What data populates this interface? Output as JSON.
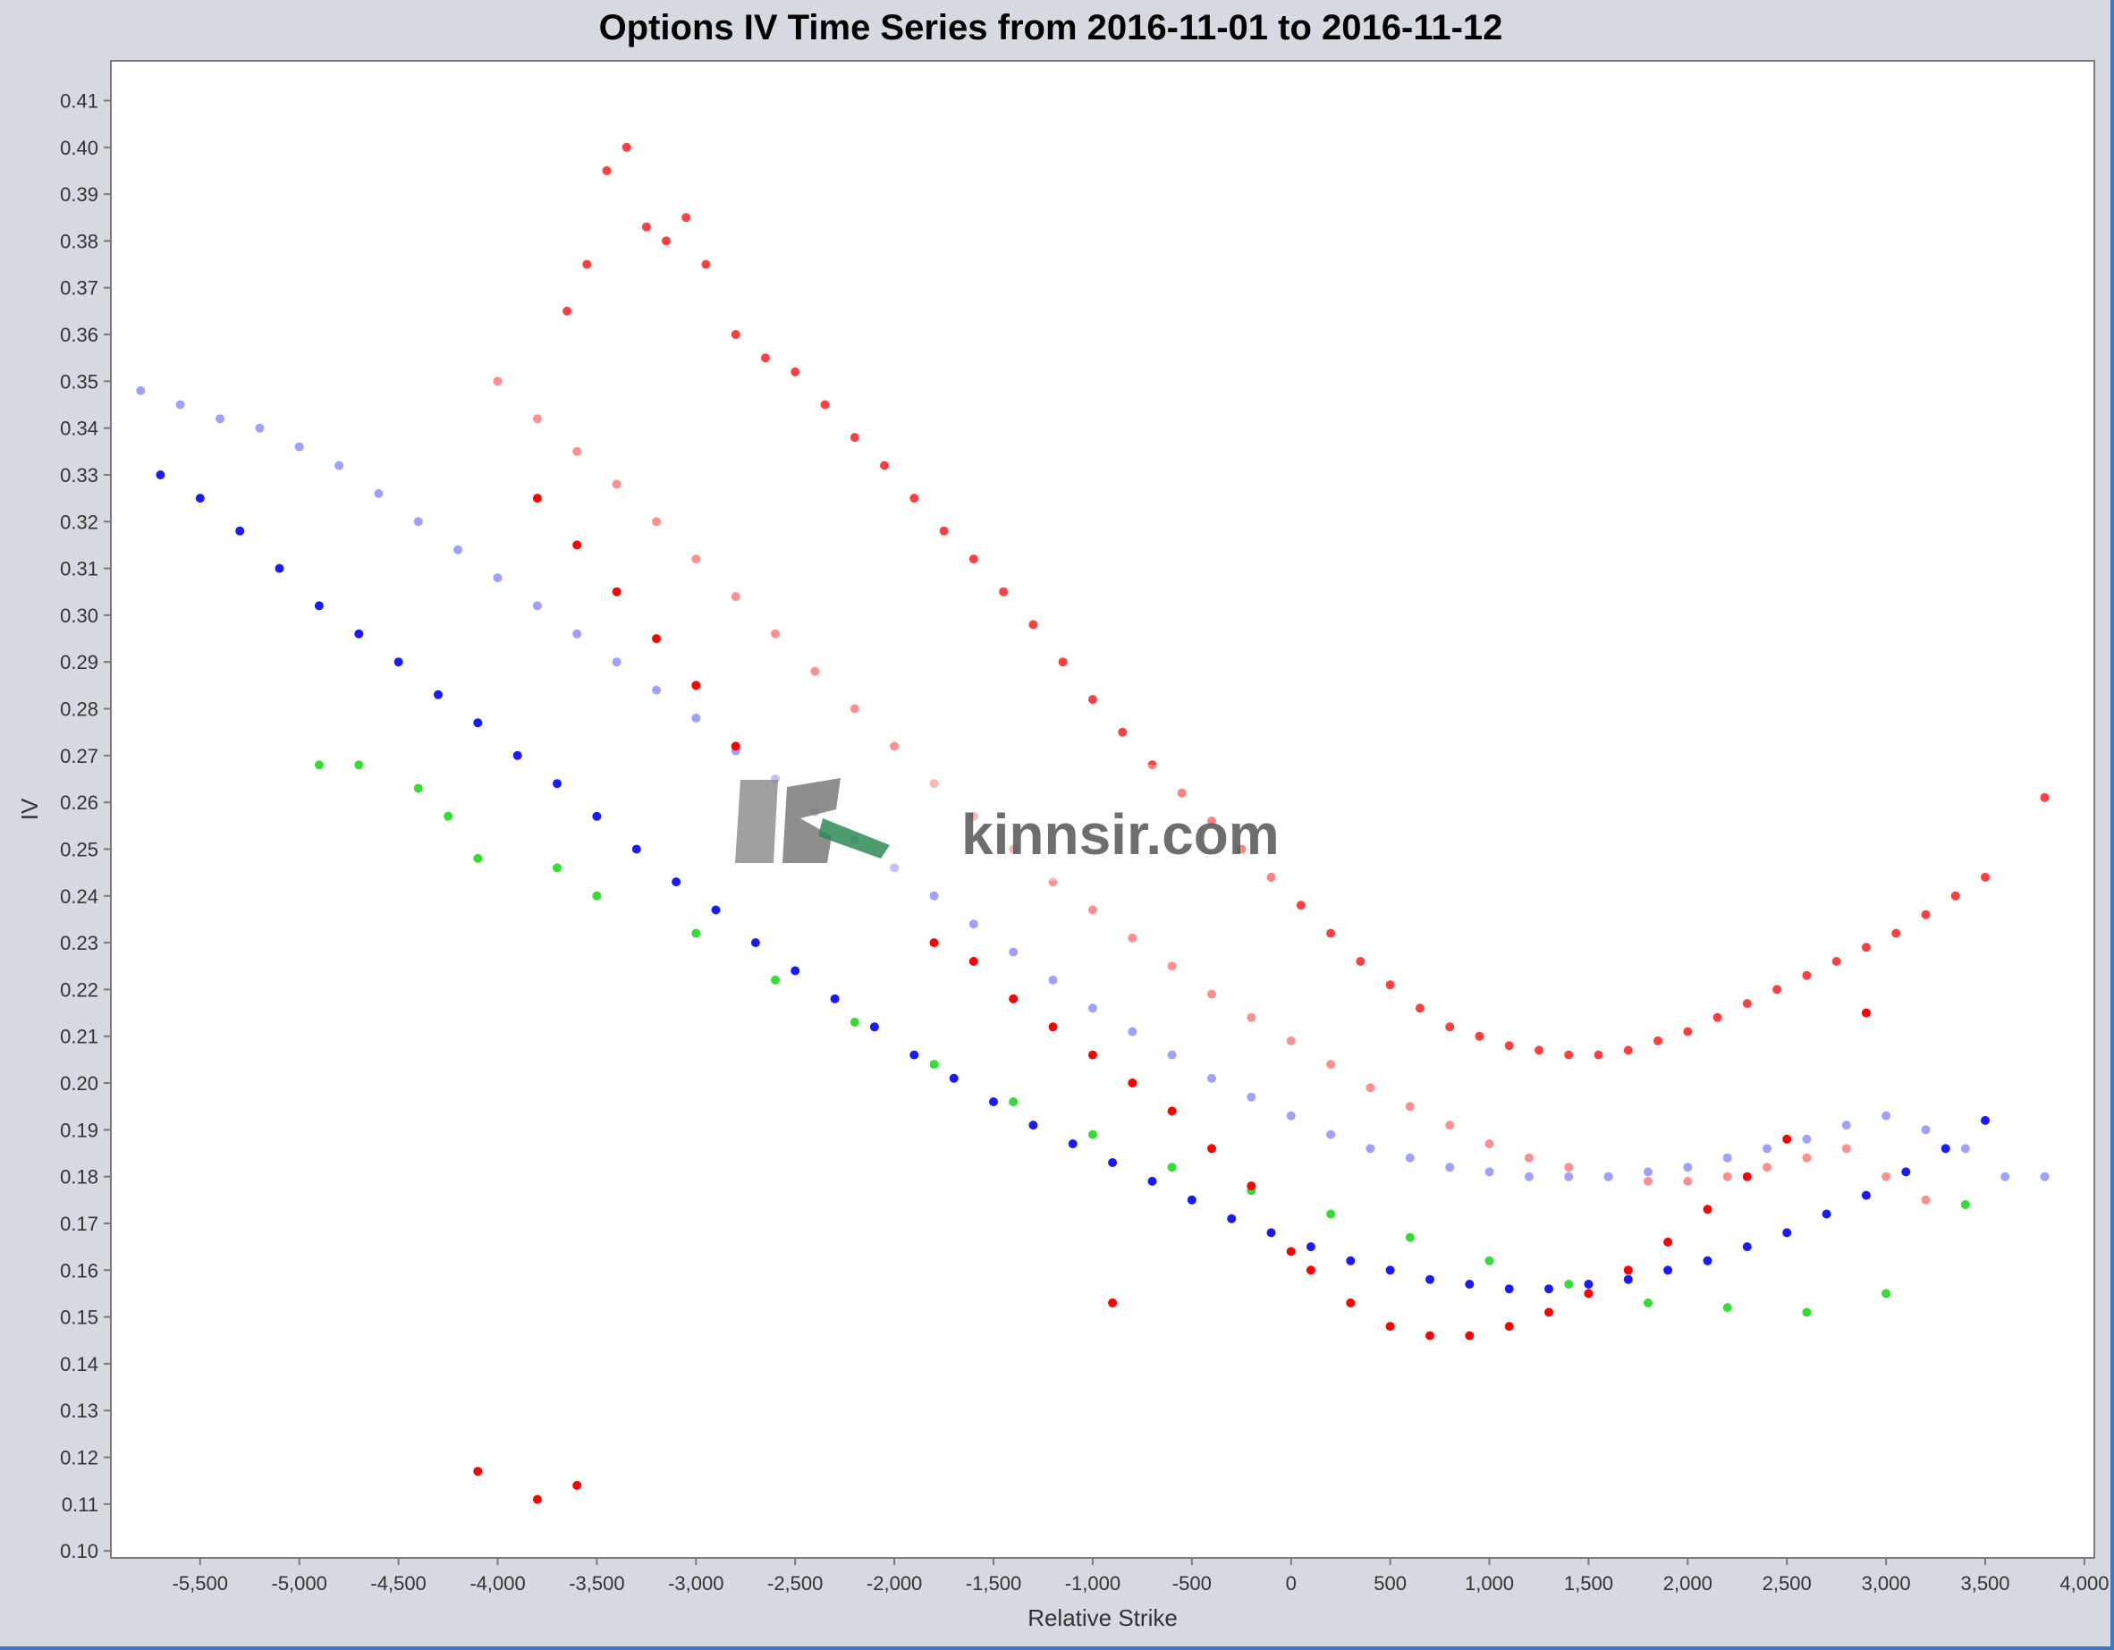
{
  "chart_data": {
    "type": "scatter",
    "title": "Options IV Time Series from 2016-11-01 to 2016-11-12",
    "xlabel": "Relative Strike",
    "ylabel": "IV",
    "xlim": [
      -5950,
      4050
    ],
    "ylim": [
      0.0985,
      0.4185
    ],
    "x_ticks": [
      -5500,
      -5000,
      -4500,
      -4000,
      -3500,
      -3000,
      -2500,
      -2000,
      -1500,
      -1000,
      -500,
      0,
      500,
      1000,
      1500,
      2000,
      2500,
      3000,
      3500,
      4000
    ],
    "x_tick_labels": [
      "-5,500",
      "-5,000",
      "-4,500",
      "-4,000",
      "-3,500",
      "-3,000",
      "-2,500",
      "-2,000",
      "-1,500",
      "-1,000",
      "-500",
      "0",
      "500",
      "1,000",
      "1,500",
      "2,000",
      "2,500",
      "3,000",
      "3,500",
      "4,000"
    ],
    "y_ticks": [
      0.1,
      0.11,
      0.12,
      0.13,
      0.14,
      0.15,
      0.16,
      0.17,
      0.18,
      0.19,
      0.2,
      0.21,
      0.22,
      0.23,
      0.24,
      0.25,
      0.26,
      0.27,
      0.28,
      0.29,
      0.3,
      0.31,
      0.32,
      0.33,
      0.34,
      0.35,
      0.36,
      0.37,
      0.38,
      0.39,
      0.4,
      0.41
    ],
    "y_tick_labels": [
      "0.10",
      "0.11",
      "0.12",
      "0.13",
      "0.14",
      "0.15",
      "0.16",
      "0.17",
      "0.18",
      "0.19",
      "0.20",
      "0.21",
      "0.22",
      "0.23",
      "0.24",
      "0.25",
      "0.26",
      "0.27",
      "0.28",
      "0.29",
      "0.30",
      "0.31",
      "0.32",
      "0.33",
      "0.34",
      "0.35",
      "0.36",
      "0.37",
      "0.38",
      "0.39",
      "0.40",
      "0.41"
    ],
    "grid": false,
    "legend": "none",
    "colors": {
      "red_front": "#ff0000",
      "red_back": "#ff4040",
      "red_faded": "#ff9090",
      "blue": "#1a1aff",
      "blue_faded": "#a0a0ff",
      "green": "#33dd33",
      "plot_background": "#ffffff",
      "page_background": "#d6d9df"
    },
    "series": [
      {
        "color_key": "red_back",
        "x": [
          -3650,
          -3550,
          -3450,
          -3350,
          -3250,
          -3150,
          -3050,
          -2950,
          -2800,
          -2650,
          -2500,
          -2350,
          -2200,
          -2050,
          -1900,
          -1750,
          -1600,
          -1450,
          -1300,
          -1150,
          -1000,
          -850,
          -700,
          -550,
          -400,
          -250,
          -100,
          50,
          200,
          350,
          500,
          650,
          800,
          950,
          1100,
          1250,
          1400,
          1550,
          1700,
          1850,
          2000,
          2150,
          2300,
          2450,
          2600,
          2750,
          2900,
          3050,
          3200,
          3350,
          3500,
          3800
        ],
        "y": [
          0.365,
          0.375,
          0.395,
          0.4,
          0.383,
          0.38,
          0.385,
          0.375,
          0.36,
          0.355,
          0.352,
          0.345,
          0.338,
          0.332,
          0.325,
          0.318,
          0.312,
          0.305,
          0.298,
          0.29,
          0.282,
          0.275,
          0.268,
          0.262,
          0.256,
          0.25,
          0.244,
          0.238,
          0.232,
          0.226,
          0.221,
          0.216,
          0.212,
          0.21,
          0.208,
          0.207,
          0.206,
          0.206,
          0.207,
          0.209,
          0.211,
          0.214,
          0.217,
          0.22,
          0.223,
          0.226,
          0.229,
          0.232,
          0.236,
          0.24,
          0.244,
          0.261
        ]
      },
      {
        "color_key": "red_faded",
        "x": [
          -4000,
          -3800,
          -3600,
          -3400,
          -3200,
          -3000,
          -2800,
          -2600,
          -2400,
          -2200,
          -2000,
          -1800,
          -1600,
          -1400,
          -1200,
          -1000,
          -800,
          -600,
          -400,
          -200,
          0,
          200,
          400,
          600,
          800,
          1000,
          1200,
          1400,
          1600,
          1800,
          2000,
          2200,
          2400,
          2600,
          2800,
          3000,
          3200
        ],
        "y": [
          0.35,
          0.342,
          0.335,
          0.328,
          0.32,
          0.312,
          0.304,
          0.296,
          0.288,
          0.28,
          0.272,
          0.264,
          0.257,
          0.25,
          0.243,
          0.237,
          0.231,
          0.225,
          0.219,
          0.214,
          0.209,
          0.204,
          0.199,
          0.195,
          0.191,
          0.187,
          0.184,
          0.182,
          0.18,
          0.179,
          0.179,
          0.18,
          0.182,
          0.184,
          0.186,
          0.18,
          0.175
        ]
      },
      {
        "color_key": "red_front",
        "x": [
          -3800,
          -3600,
          -3400,
          -3200,
          -3000,
          -2800,
          -1800,
          -1600,
          -1400,
          -1200,
          -1000,
          -800,
          -600,
          -400,
          -200,
          0,
          100,
          300,
          500,
          700,
          900,
          1100,
          1300,
          1500,
          1700,
          1900,
          2100,
          2300,
          2500,
          2900,
          -4100,
          -3800,
          -3600,
          -900
        ],
        "y": [
          0.325,
          0.315,
          0.305,
          0.295,
          0.285,
          0.272,
          0.23,
          0.226,
          0.218,
          0.212,
          0.206,
          0.2,
          0.194,
          0.186,
          0.178,
          0.164,
          0.16,
          0.153,
          0.148,
          0.146,
          0.146,
          0.148,
          0.151,
          0.155,
          0.16,
          0.166,
          0.173,
          0.18,
          0.188,
          0.215,
          0.117,
          0.111,
          0.114,
          0.153
        ]
      },
      {
        "color_key": "blue",
        "x": [
          -5700,
          -5500,
          -5300,
          -5100,
          -4900,
          -4700,
          -4500,
          -4300,
          -4100,
          -3900,
          -3700,
          -3500,
          -3300,
          -3100,
          -2900,
          -2700,
          -2500,
          -2300,
          -2100,
          -1900,
          -1700,
          -1500,
          -1300,
          -1100,
          -900,
          -700,
          -500,
          -300,
          -100,
          100,
          300,
          500,
          700,
          900,
          1100,
          1300,
          1500,
          1700,
          1900,
          2100,
          2300,
          2500,
          2700,
          2900,
          3100,
          3300,
          3500
        ],
        "y": [
          0.33,
          0.325,
          0.318,
          0.31,
          0.302,
          0.296,
          0.29,
          0.283,
          0.277,
          0.27,
          0.264,
          0.257,
          0.25,
          0.243,
          0.237,
          0.23,
          0.224,
          0.218,
          0.212,
          0.206,
          0.201,
          0.196,
          0.191,
          0.187,
          0.183,
          0.179,
          0.175,
          0.171,
          0.168,
          0.165,
          0.162,
          0.16,
          0.158,
          0.157,
          0.156,
          0.156,
          0.157,
          0.158,
          0.16,
          0.162,
          0.165,
          0.168,
          0.172,
          0.176,
          0.181,
          0.186,
          0.192
        ]
      },
      {
        "color_key": "blue_faded",
        "x": [
          -5800,
          -5600,
          -5400,
          -5200,
          -5000,
          -4800,
          -4600,
          -4400,
          -4200,
          -4000,
          -3800,
          -3600,
          -3400,
          -3200,
          -3000,
          -2800,
          -2600,
          -2400,
          -2200,
          -2000,
          -1800,
          -1600,
          -1400,
          -1200,
          -1000,
          -800,
          -600,
          -400,
          -200,
          0,
          200,
          400,
          600,
          800,
          1000,
          1200,
          1400,
          1600,
          1800,
          2000,
          2200,
          2400,
          2600,
          2800,
          3000,
          3200,
          3400,
          3600,
          3800
        ],
        "y": [
          0.348,
          0.345,
          0.342,
          0.34,
          0.336,
          0.332,
          0.326,
          0.32,
          0.314,
          0.308,
          0.302,
          0.296,
          0.29,
          0.284,
          0.278,
          0.271,
          0.265,
          0.258,
          0.252,
          0.246,
          0.24,
          0.234,
          0.228,
          0.222,
          0.216,
          0.211,
          0.206,
          0.201,
          0.197,
          0.193,
          0.189,
          0.186,
          0.184,
          0.182,
          0.181,
          0.18,
          0.18,
          0.18,
          0.181,
          0.182,
          0.184,
          0.186,
          0.188,
          0.191,
          0.193,
          0.19,
          0.186,
          0.18,
          0.18
        ]
      },
      {
        "color_key": "green",
        "x": [
          -4900,
          -4700,
          -4400,
          -4250,
          -4100,
          -3700,
          -3500,
          -3000,
          -2600,
          -2200,
          -1800,
          -1400,
          -1000,
          -600,
          -200,
          200,
          600,
          1000,
          1400,
          1800,
          2200,
          2600,
          3000,
          3400
        ],
        "y": [
          0.268,
          0.268,
          0.263,
          0.257,
          0.248,
          0.246,
          0.24,
          0.232,
          0.222,
          0.213,
          0.204,
          0.196,
          0.189,
          0.182,
          0.177,
          0.172,
          0.167,
          0.162,
          0.157,
          0.153,
          0.152,
          0.151,
          0.155,
          0.174
        ]
      }
    ],
    "watermark": "kinnsir.com"
  }
}
